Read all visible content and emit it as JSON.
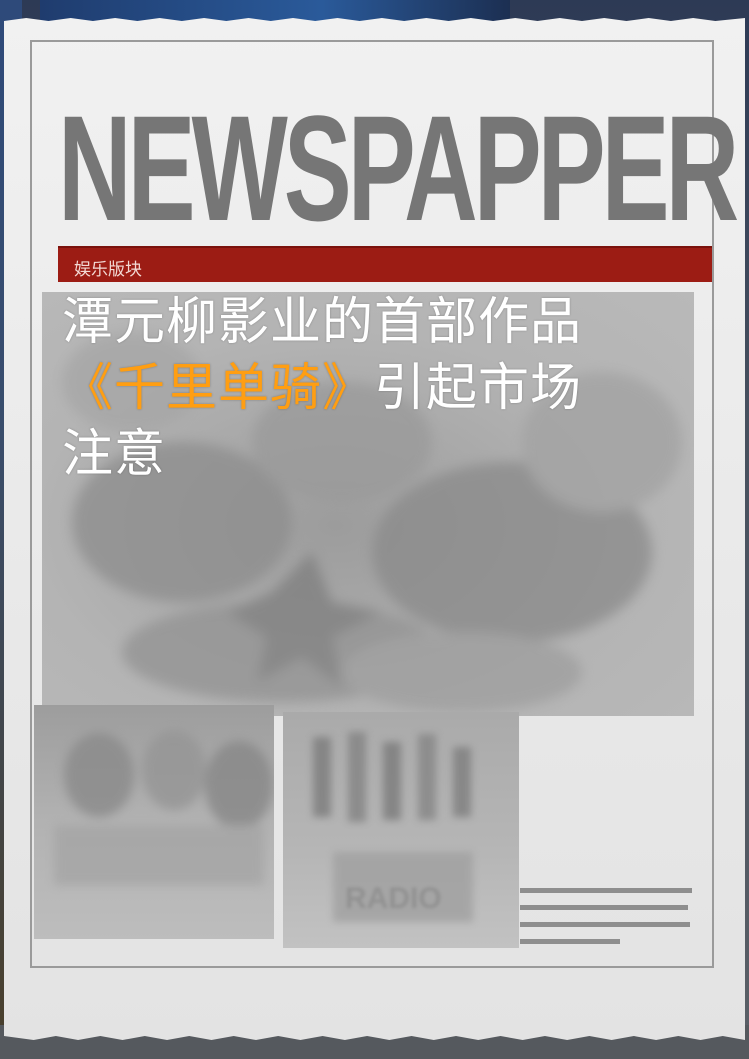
{
  "masthead": {
    "title": "NEWSPAPPER"
  },
  "section": {
    "label": "娱乐版块"
  },
  "headline": {
    "part1": "潭元柳影业的首部作品",
    "highlight": "《千里单骑》",
    "part2": "引起市场",
    "part3": "注意"
  },
  "thumbnails": {
    "right_caption_line1": "RADIO"
  },
  "colors": {
    "section_bar": "#9c1c14",
    "masthead_text": "#767676",
    "headline_text": "#ffffff",
    "headline_highlight": "#ff9e12",
    "paper": "#ececec"
  }
}
